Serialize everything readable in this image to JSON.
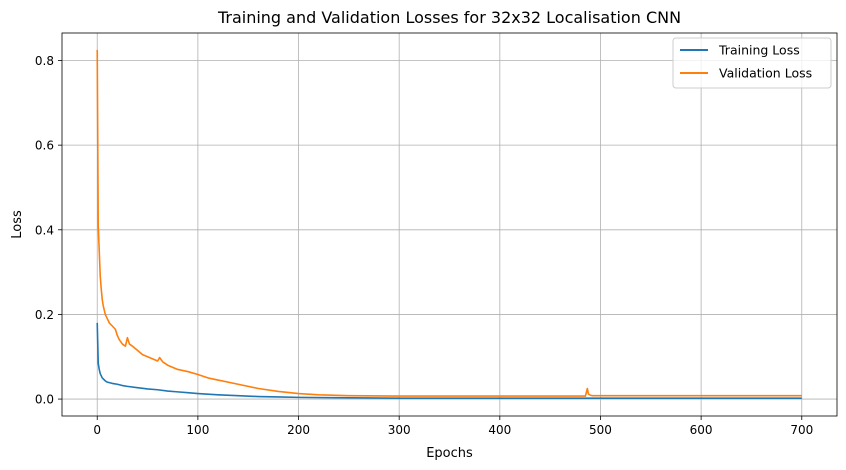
{
  "chart_data": {
    "type": "line",
    "title": "Training and Validation Losses for 32x32 Localisation CNN",
    "xlabel": "Epochs",
    "ylabel": "Loss",
    "xlim": [
      -35,
      735
    ],
    "ylim": [
      -0.04,
      0.865
    ],
    "xticks": [
      0,
      100,
      200,
      300,
      400,
      500,
      600,
      700
    ],
    "yticks": [
      0.0,
      0.2,
      0.4,
      0.6,
      0.8
    ],
    "ytick_labels": [
      "0.0",
      "0.2",
      "0.4",
      "0.6",
      "0.8"
    ],
    "grid": true,
    "legend_position": "top-right",
    "series": [
      {
        "name": "Training Loss",
        "color": "#1f77b4",
        "x": [
          0,
          1,
          2,
          3,
          5,
          8,
          10,
          15,
          20,
          25,
          30,
          40,
          50,
          60,
          70,
          80,
          90,
          100,
          120,
          140,
          160,
          180,
          200,
          250,
          300,
          400,
          480,
          500,
          600,
          700
        ],
        "y": [
          0.18,
          0.085,
          0.07,
          0.06,
          0.05,
          0.043,
          0.04,
          0.037,
          0.035,
          0.032,
          0.03,
          0.027,
          0.024,
          0.022,
          0.019,
          0.017,
          0.015,
          0.013,
          0.01,
          0.008,
          0.006,
          0.005,
          0.004,
          0.003,
          0.002,
          0.002,
          0.002,
          0.002,
          0.002,
          0.002
        ]
      },
      {
        "name": "Validation Loss",
        "color": "#ff7f0e",
        "x": [
          0,
          1,
          2,
          3,
          4,
          5,
          6,
          7,
          8,
          10,
          12,
          14,
          16,
          18,
          20,
          22,
          25,
          28,
          30,
          32,
          35,
          40,
          45,
          50,
          55,
          60,
          62,
          65,
          70,
          80,
          90,
          100,
          110,
          120,
          140,
          160,
          180,
          200,
          220,
          250,
          300,
          400,
          485,
          487,
          488,
          490,
          492,
          500,
          600,
          700
        ],
        "y": [
          0.825,
          0.41,
          0.35,
          0.29,
          0.26,
          0.235,
          0.22,
          0.21,
          0.2,
          0.19,
          0.18,
          0.175,
          0.17,
          0.165,
          0.15,
          0.14,
          0.13,
          0.125,
          0.145,
          0.13,
          0.125,
          0.115,
          0.105,
          0.1,
          0.095,
          0.09,
          0.098,
          0.088,
          0.08,
          0.07,
          0.065,
          0.058,
          0.05,
          0.045,
          0.035,
          0.025,
          0.018,
          0.013,
          0.01,
          0.008,
          0.007,
          0.007,
          0.007,
          0.025,
          0.012,
          0.009,
          0.008,
          0.008,
          0.008,
          0.008
        ]
      }
    ]
  }
}
